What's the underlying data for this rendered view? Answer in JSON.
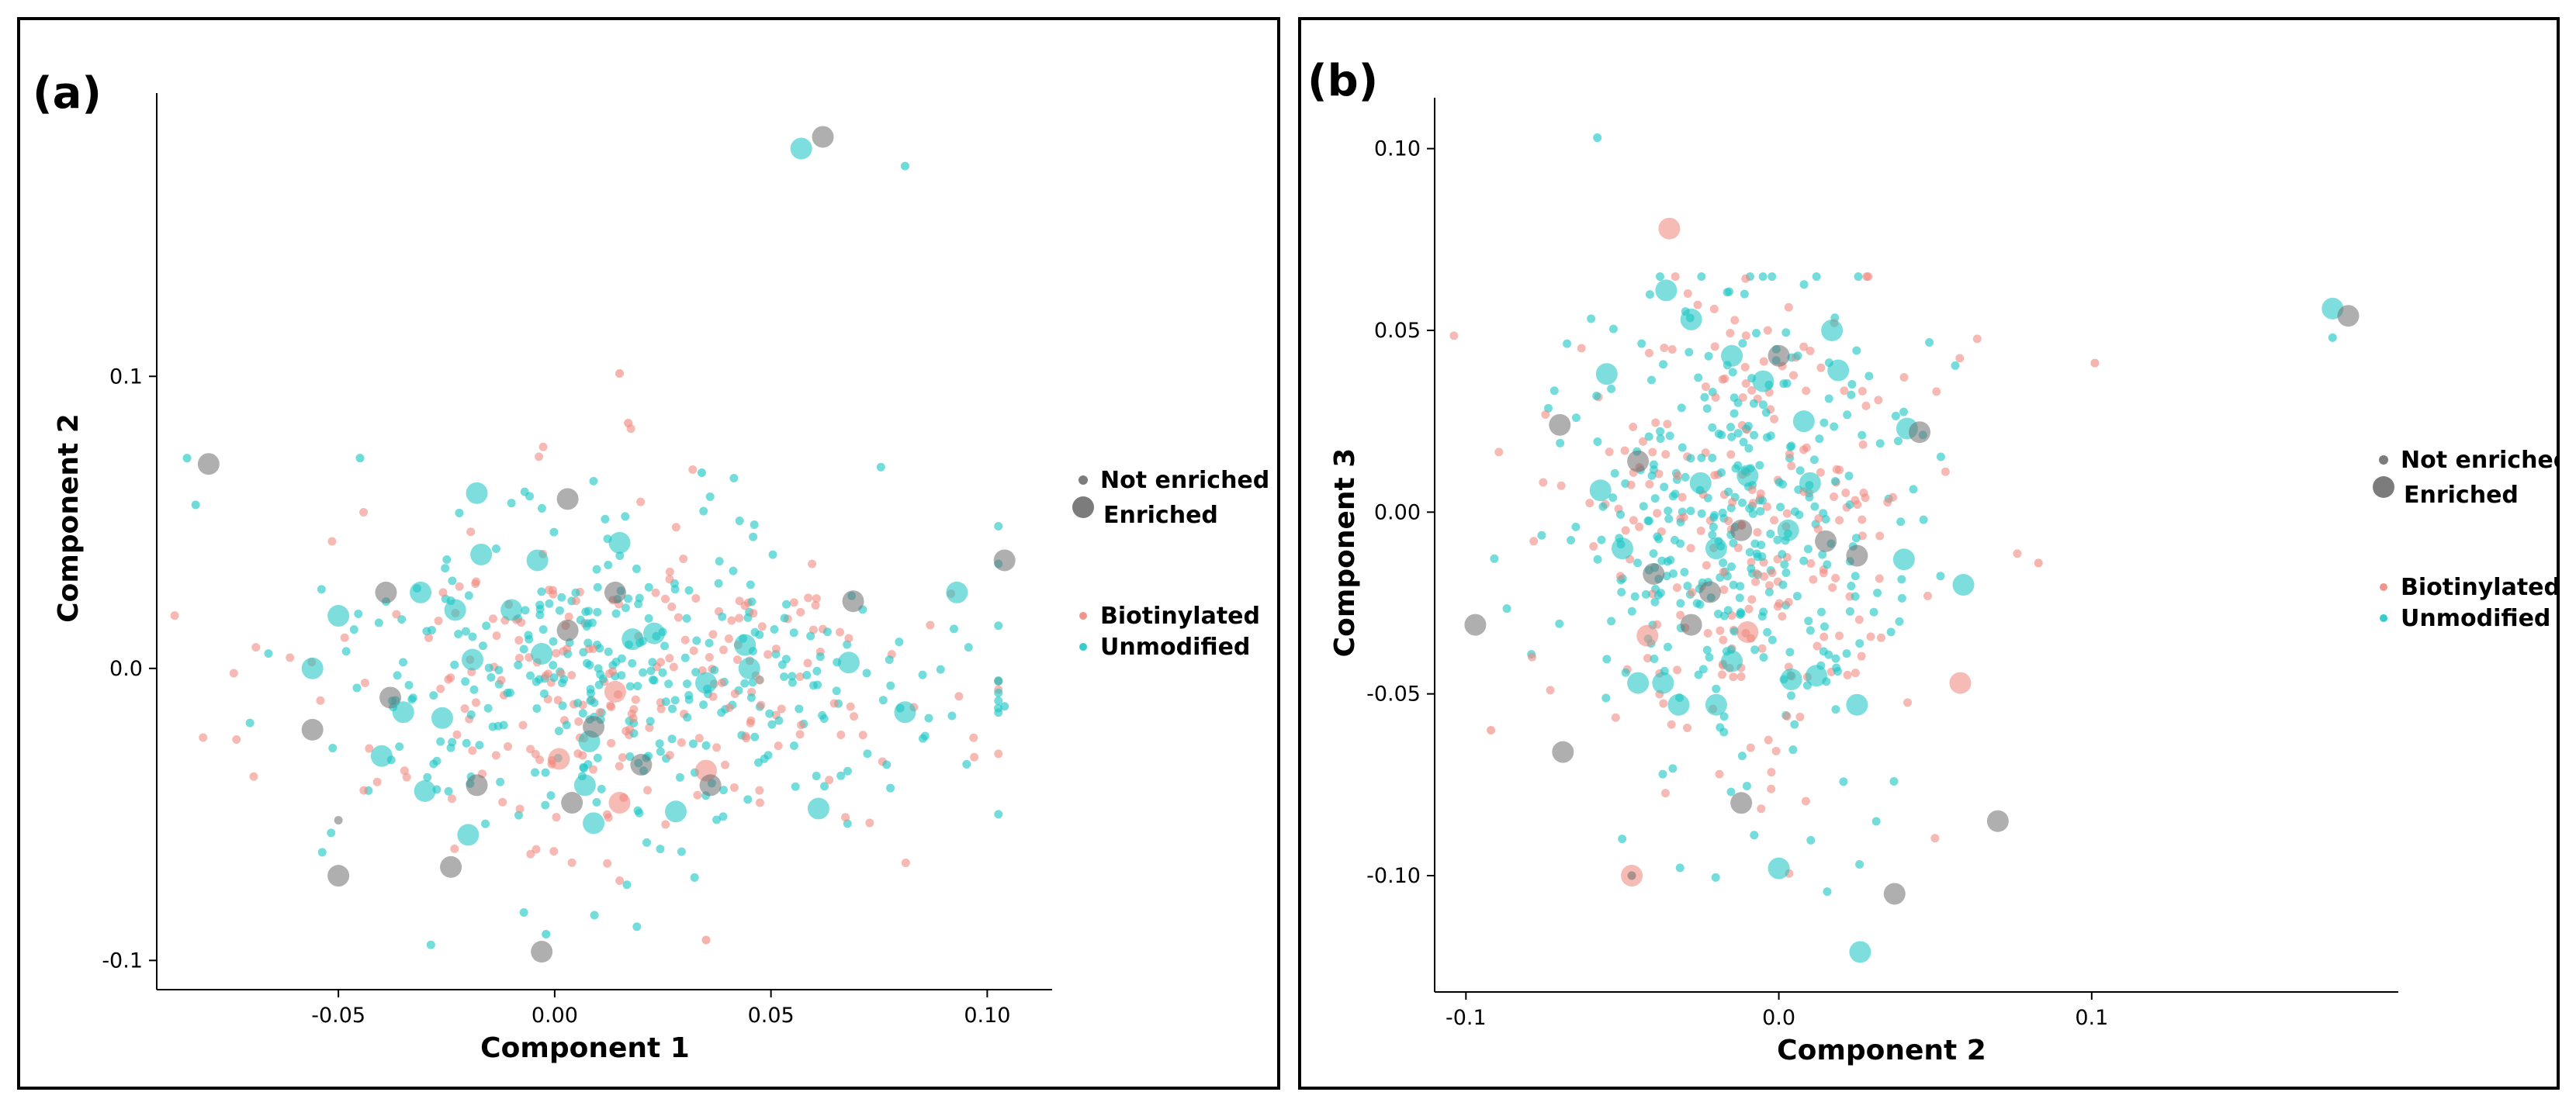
{
  "colors": {
    "biotinylated": "#f08a80",
    "unmodified": "#20c7c7",
    "enriched_gray": "#6e6e6e"
  },
  "chart_data": [
    {
      "type": "scatter",
      "panel_label": "(a)",
      "xlabel": "Component 1",
      "ylabel": "Component 2",
      "xlim": [
        -0.092,
        0.115
      ],
      "ylim": [
        -0.11,
        0.197
      ],
      "xticks": [
        {
          "v": -0.05,
          "label": "-0.05"
        },
        {
          "v": 0.0,
          "label": "0.00"
        },
        {
          "v": 0.05,
          "label": "0.05"
        },
        {
          "v": 0.1,
          "label": "0.10"
        }
      ],
      "yticks": [
        {
          "v": -0.1,
          "label": "-0.1"
        },
        {
          "v": 0.0,
          "label": "0.0"
        },
        {
          "v": 0.1,
          "label": "0.1"
        }
      ],
      "legend": {
        "size_title_items": [
          "Not enriched",
          "Enriched"
        ],
        "color_items": [
          "Biotinylated",
          "Unmodified"
        ]
      },
      "background_cloud": {
        "x_center": 0.02,
        "y_center": -0.005,
        "x_sd": 0.035,
        "y_sd": 0.028,
        "count_biotinylated": 230,
        "count_unmodified": 340
      },
      "named_points": [
        {
          "x": 0.057,
          "y": 0.178,
          "group": "Unmodified",
          "size": "Enriched"
        },
        {
          "x": 0.062,
          "y": 0.182,
          "group": "Gray",
          "size": "Enriched"
        },
        {
          "x": 0.081,
          "y": 0.172,
          "group": "Unmodified",
          "size": "Not enriched"
        },
        {
          "x": -0.085,
          "y": 0.072,
          "group": "Unmodified",
          "size": "Not enriched"
        },
        {
          "x": -0.08,
          "y": 0.07,
          "group": "Gray",
          "size": "Enriched"
        },
        {
          "x": -0.083,
          "y": 0.056,
          "group": "Unmodified",
          "size": "Not enriched"
        },
        {
          "x": 0.015,
          "y": 0.101,
          "group": "Biotinylated",
          "size": "Not enriched"
        },
        {
          "x": 0.017,
          "y": 0.084,
          "group": "Biotinylated",
          "size": "Not enriched"
        },
        {
          "x": -0.045,
          "y": 0.072,
          "group": "Unmodified",
          "size": "Not enriched"
        },
        {
          "x": 0.034,
          "y": 0.067,
          "group": "Unmodified",
          "size": "Not enriched"
        },
        {
          "x": 0.104,
          "y": 0.037,
          "group": "Gray",
          "size": "Enriched"
        },
        {
          "x": 0.093,
          "y": 0.026,
          "group": "Unmodified",
          "size": "Enriched"
        },
        {
          "x": 0.069,
          "y": 0.023,
          "group": "Gray",
          "size": "Enriched"
        },
        {
          "x": 0.068,
          "y": 0.002,
          "group": "Unmodified",
          "size": "Enriched"
        },
        {
          "x": 0.081,
          "y": -0.015,
          "group": "Unmodified",
          "size": "Enriched"
        },
        {
          "x": 0.104,
          "y": -0.013,
          "group": "Unmodified",
          "size": "Not enriched"
        },
        {
          "x": 0.061,
          "y": -0.048,
          "group": "Unmodified",
          "size": "Enriched"
        },
        {
          "x": -0.056,
          "y": 0.0,
          "group": "Unmodified",
          "size": "Enriched"
        },
        {
          "x": -0.056,
          "y": -0.021,
          "group": "Gray",
          "size": "Enriched"
        },
        {
          "x": -0.05,
          "y": 0.018,
          "group": "Unmodified",
          "size": "Enriched"
        },
        {
          "x": -0.039,
          "y": 0.026,
          "group": "Gray",
          "size": "Enriched"
        },
        {
          "x": -0.031,
          "y": 0.026,
          "group": "Unmodified",
          "size": "Enriched"
        },
        {
          "x": -0.018,
          "y": 0.06,
          "group": "Unmodified",
          "size": "Enriched"
        },
        {
          "x": 0.003,
          "y": 0.058,
          "group": "Gray",
          "size": "Enriched"
        },
        {
          "x": 0.015,
          "y": 0.043,
          "group": "Unmodified",
          "size": "Enriched"
        },
        {
          "x": -0.004,
          "y": 0.037,
          "group": "Unmodified",
          "size": "Enriched"
        },
        {
          "x": -0.017,
          "y": 0.039,
          "group": "Unmodified",
          "size": "Enriched"
        },
        {
          "x": 0.003,
          "y": 0.013,
          "group": "Gray",
          "size": "Enriched"
        },
        {
          "x": 0.014,
          "y": 0.026,
          "group": "Gray",
          "size": "Enriched"
        },
        {
          "x": -0.038,
          "y": -0.01,
          "group": "Gray",
          "size": "Enriched"
        },
        {
          "x": -0.035,
          "y": -0.015,
          "group": "Unmodified",
          "size": "Enriched"
        },
        {
          "x": -0.026,
          "y": -0.017,
          "group": "Unmodified",
          "size": "Enriched"
        },
        {
          "x": -0.04,
          "y": -0.03,
          "group": "Unmodified",
          "size": "Enriched"
        },
        {
          "x": -0.03,
          "y": -0.042,
          "group": "Unmodified",
          "size": "Enriched"
        },
        {
          "x": -0.018,
          "y": -0.04,
          "group": "Gray",
          "size": "Enriched"
        },
        {
          "x": -0.02,
          "y": -0.057,
          "group": "Unmodified",
          "size": "Enriched"
        },
        {
          "x": -0.024,
          "y": -0.068,
          "group": "Gray",
          "size": "Enriched"
        },
        {
          "x": -0.05,
          "y": -0.071,
          "group": "Gray",
          "size": "Enriched"
        },
        {
          "x": -0.05,
          "y": -0.052,
          "group": "Gray",
          "size": "Not enriched"
        },
        {
          "x": 0.004,
          "y": -0.046,
          "group": "Gray",
          "size": "Enriched"
        },
        {
          "x": 0.007,
          "y": -0.04,
          "group": "Unmodified",
          "size": "Enriched"
        },
        {
          "x": 0.009,
          "y": -0.053,
          "group": "Unmodified",
          "size": "Enriched"
        },
        {
          "x": 0.015,
          "y": -0.046,
          "group": "Biotinylated",
          "size": "Enriched"
        },
        {
          "x": 0.028,
          "y": -0.049,
          "group": "Unmodified",
          "size": "Enriched"
        },
        {
          "x": 0.035,
          "y": -0.035,
          "group": "Biotinylated",
          "size": "Enriched"
        },
        {
          "x": 0.036,
          "y": -0.04,
          "group": "Gray",
          "size": "Enriched"
        },
        {
          "x": 0.044,
          "y": 0.008,
          "group": "Unmodified",
          "size": "Enriched"
        },
        {
          "x": 0.045,
          "y": 0.0,
          "group": "Unmodified",
          "size": "Enriched"
        },
        {
          "x": 0.035,
          "y": -0.005,
          "group": "Unmodified",
          "size": "Enriched"
        },
        {
          "x": 0.008,
          "y": -0.025,
          "group": "Unmodified",
          "size": "Enriched"
        },
        {
          "x": 0.014,
          "y": -0.008,
          "group": "Biotinylated",
          "size": "Enriched"
        },
        {
          "x": 0.018,
          "y": 0.01,
          "group": "Unmodified",
          "size": "Enriched"
        },
        {
          "x": 0.023,
          "y": 0.012,
          "group": "Unmodified",
          "size": "Enriched"
        },
        {
          "x": -0.003,
          "y": 0.005,
          "group": "Unmodified",
          "size": "Enriched"
        },
        {
          "x": -0.01,
          "y": 0.02,
          "group": "Unmodified",
          "size": "Enriched"
        },
        {
          "x": -0.023,
          "y": 0.02,
          "group": "Unmodified",
          "size": "Enriched"
        },
        {
          "x": -0.019,
          "y": 0.003,
          "group": "Unmodified",
          "size": "Enriched"
        },
        {
          "x": 0.009,
          "y": -0.02,
          "group": "Gray",
          "size": "Enriched"
        },
        {
          "x": 0.02,
          "y": -0.033,
          "group": "Gray",
          "size": "Enriched"
        },
        {
          "x": -0.003,
          "y": -0.097,
          "group": "Gray",
          "size": "Enriched"
        },
        {
          "x": -0.002,
          "y": -0.091,
          "group": "Unmodified",
          "size": "Not enriched"
        },
        {
          "x": 0.035,
          "y": -0.093,
          "group": "Biotinylated",
          "size": "Not enriched"
        },
        {
          "x": 0.001,
          "y": -0.031,
          "group": "Biotinylated",
          "size": "Enriched"
        }
      ]
    },
    {
      "type": "scatter",
      "panel_label": "(b)",
      "xlabel": "Component 2",
      "ylabel": "Component 3",
      "xlim": [
        -0.11,
        0.198
      ],
      "ylim": [
        -0.132,
        0.114
      ],
      "xticks": [
        {
          "v": -0.1,
          "label": "-0.1"
        },
        {
          "v": 0.0,
          "label": "0.0"
        },
        {
          "v": 0.1,
          "label": "0.1"
        }
      ],
      "yticks": [
        {
          "v": -0.1,
          "label": "-0.10"
        },
        {
          "v": -0.05,
          "label": "-0.05"
        },
        {
          "v": 0.0,
          "label": "0.00"
        },
        {
          "v": 0.05,
          "label": "0.05"
        },
        {
          "v": 0.1,
          "label": "0.10"
        }
      ],
      "legend": {
        "size_title_items": [
          "Not enriched",
          "Enriched"
        ],
        "color_items": [
          "Biotinylated",
          "Unmodified"
        ]
      },
      "background_cloud": {
        "x_center": -0.012,
        "y_center": -0.002,
        "x_sd": 0.028,
        "y_sd": 0.034,
        "count_biotinylated": 230,
        "count_unmodified": 340
      },
      "named_points": [
        {
          "x": 0.177,
          "y": 0.056,
          "group": "Unmodified",
          "size": "Enriched"
        },
        {
          "x": 0.182,
          "y": 0.054,
          "group": "Gray",
          "size": "Enriched"
        },
        {
          "x": 0.177,
          "y": 0.048,
          "group": "Unmodified",
          "size": "Not enriched"
        },
        {
          "x": 0.101,
          "y": 0.041,
          "group": "Biotinylated",
          "size": "Not enriched"
        },
        {
          "x": 0.083,
          "y": -0.014,
          "group": "Biotinylated",
          "size": "Not enriched"
        },
        {
          "x": -0.058,
          "y": 0.103,
          "group": "Unmodified",
          "size": "Not enriched"
        },
        {
          "x": -0.097,
          "y": -0.031,
          "group": "Gray",
          "size": "Enriched"
        },
        {
          "x": -0.092,
          "y": -0.06,
          "group": "Biotinylated",
          "size": "Not enriched"
        },
        {
          "x": -0.07,
          "y": 0.024,
          "group": "Gray",
          "size": "Enriched"
        },
        {
          "x": -0.069,
          "y": -0.066,
          "group": "Gray",
          "size": "Enriched"
        },
        {
          "x": -0.047,
          "y": -0.1,
          "group": "Biotinylated",
          "size": "Enriched"
        },
        {
          "x": -0.047,
          "y": -0.1,
          "group": "Gray",
          "size": "Not enriched"
        },
        {
          "x": -0.035,
          "y": 0.078,
          "group": "Biotinylated",
          "size": "Enriched"
        },
        {
          "x": -0.036,
          "y": 0.061,
          "group": "Unmodified",
          "size": "Enriched"
        },
        {
          "x": -0.055,
          "y": 0.038,
          "group": "Unmodified",
          "size": "Enriched"
        },
        {
          "x": -0.045,
          "y": 0.014,
          "group": "Gray",
          "size": "Enriched"
        },
        {
          "x": -0.057,
          "y": 0.006,
          "group": "Unmodified",
          "size": "Enriched"
        },
        {
          "x": -0.05,
          "y": -0.01,
          "group": "Unmodified",
          "size": "Enriched"
        },
        {
          "x": -0.045,
          "y": -0.047,
          "group": "Unmodified",
          "size": "Enriched"
        },
        {
          "x": -0.037,
          "y": -0.047,
          "group": "Unmodified",
          "size": "Enriched"
        },
        {
          "x": -0.032,
          "y": -0.053,
          "group": "Unmodified",
          "size": "Enriched"
        },
        {
          "x": -0.02,
          "y": -0.053,
          "group": "Unmodified",
          "size": "Enriched"
        },
        {
          "x": -0.04,
          "y": -0.017,
          "group": "Gray",
          "size": "Enriched"
        },
        {
          "x": -0.042,
          "y": -0.034,
          "group": "Biotinylated",
          "size": "Enriched"
        },
        {
          "x": -0.028,
          "y": 0.053,
          "group": "Unmodified",
          "size": "Enriched"
        },
        {
          "x": -0.015,
          "y": 0.043,
          "group": "Unmodified",
          "size": "Enriched"
        },
        {
          "x": 0.0,
          "y": 0.043,
          "group": "Gray",
          "size": "Enriched"
        },
        {
          "x": 0.017,
          "y": 0.05,
          "group": "Unmodified",
          "size": "Enriched"
        },
        {
          "x": 0.019,
          "y": 0.039,
          "group": "Unmodified",
          "size": "Enriched"
        },
        {
          "x": 0.041,
          "y": 0.023,
          "group": "Unmodified",
          "size": "Enriched"
        },
        {
          "x": 0.045,
          "y": 0.022,
          "group": "Gray",
          "size": "Enriched"
        },
        {
          "x": 0.04,
          "y": -0.013,
          "group": "Unmodified",
          "size": "Enriched"
        },
        {
          "x": 0.058,
          "y": -0.047,
          "group": "Biotinylated",
          "size": "Enriched"
        },
        {
          "x": 0.059,
          "y": -0.02,
          "group": "Unmodified",
          "size": "Enriched"
        },
        {
          "x": 0.025,
          "y": -0.053,
          "group": "Unmodified",
          "size": "Enriched"
        },
        {
          "x": 0.012,
          "y": -0.045,
          "group": "Unmodified",
          "size": "Enriched"
        },
        {
          "x": 0.004,
          "y": -0.046,
          "group": "Unmodified",
          "size": "Enriched"
        },
        {
          "x": 0.0,
          "y": -0.098,
          "group": "Unmodified",
          "size": "Enriched"
        },
        {
          "x": -0.012,
          "y": -0.08,
          "group": "Gray",
          "size": "Enriched"
        },
        {
          "x": 0.026,
          "y": -0.121,
          "group": "Unmodified",
          "size": "Enriched"
        },
        {
          "x": 0.037,
          "y": -0.105,
          "group": "Gray",
          "size": "Enriched"
        },
        {
          "x": 0.07,
          "y": -0.085,
          "group": "Gray",
          "size": "Enriched"
        },
        {
          "x": -0.022,
          "y": -0.022,
          "group": "Gray",
          "size": "Enriched"
        },
        {
          "x": -0.028,
          "y": -0.031,
          "group": "Gray",
          "size": "Enriched"
        },
        {
          "x": -0.01,
          "y": -0.033,
          "group": "Biotinylated",
          "size": "Enriched"
        },
        {
          "x": -0.015,
          "y": -0.041,
          "group": "Unmodified",
          "size": "Enriched"
        },
        {
          "x": 0.015,
          "y": -0.008,
          "group": "Gray",
          "size": "Enriched"
        },
        {
          "x": 0.025,
          "y": -0.012,
          "group": "Gray",
          "size": "Enriched"
        },
        {
          "x": -0.01,
          "y": 0.01,
          "group": "Unmodified",
          "size": "Enriched"
        },
        {
          "x": 0.01,
          "y": 0.008,
          "group": "Unmodified",
          "size": "Enriched"
        },
        {
          "x": -0.025,
          "y": 0.008,
          "group": "Unmodified",
          "size": "Enriched"
        },
        {
          "x": -0.005,
          "y": 0.036,
          "group": "Unmodified",
          "size": "Enriched"
        },
        {
          "x": 0.008,
          "y": 0.025,
          "group": "Unmodified",
          "size": "Enriched"
        },
        {
          "x": -0.02,
          "y": -0.01,
          "group": "Unmodified",
          "size": "Enriched"
        },
        {
          "x": 0.003,
          "y": -0.005,
          "group": "Unmodified",
          "size": "Enriched"
        },
        {
          "x": -0.012,
          "y": -0.005,
          "group": "Gray",
          "size": "Enriched"
        }
      ]
    }
  ]
}
